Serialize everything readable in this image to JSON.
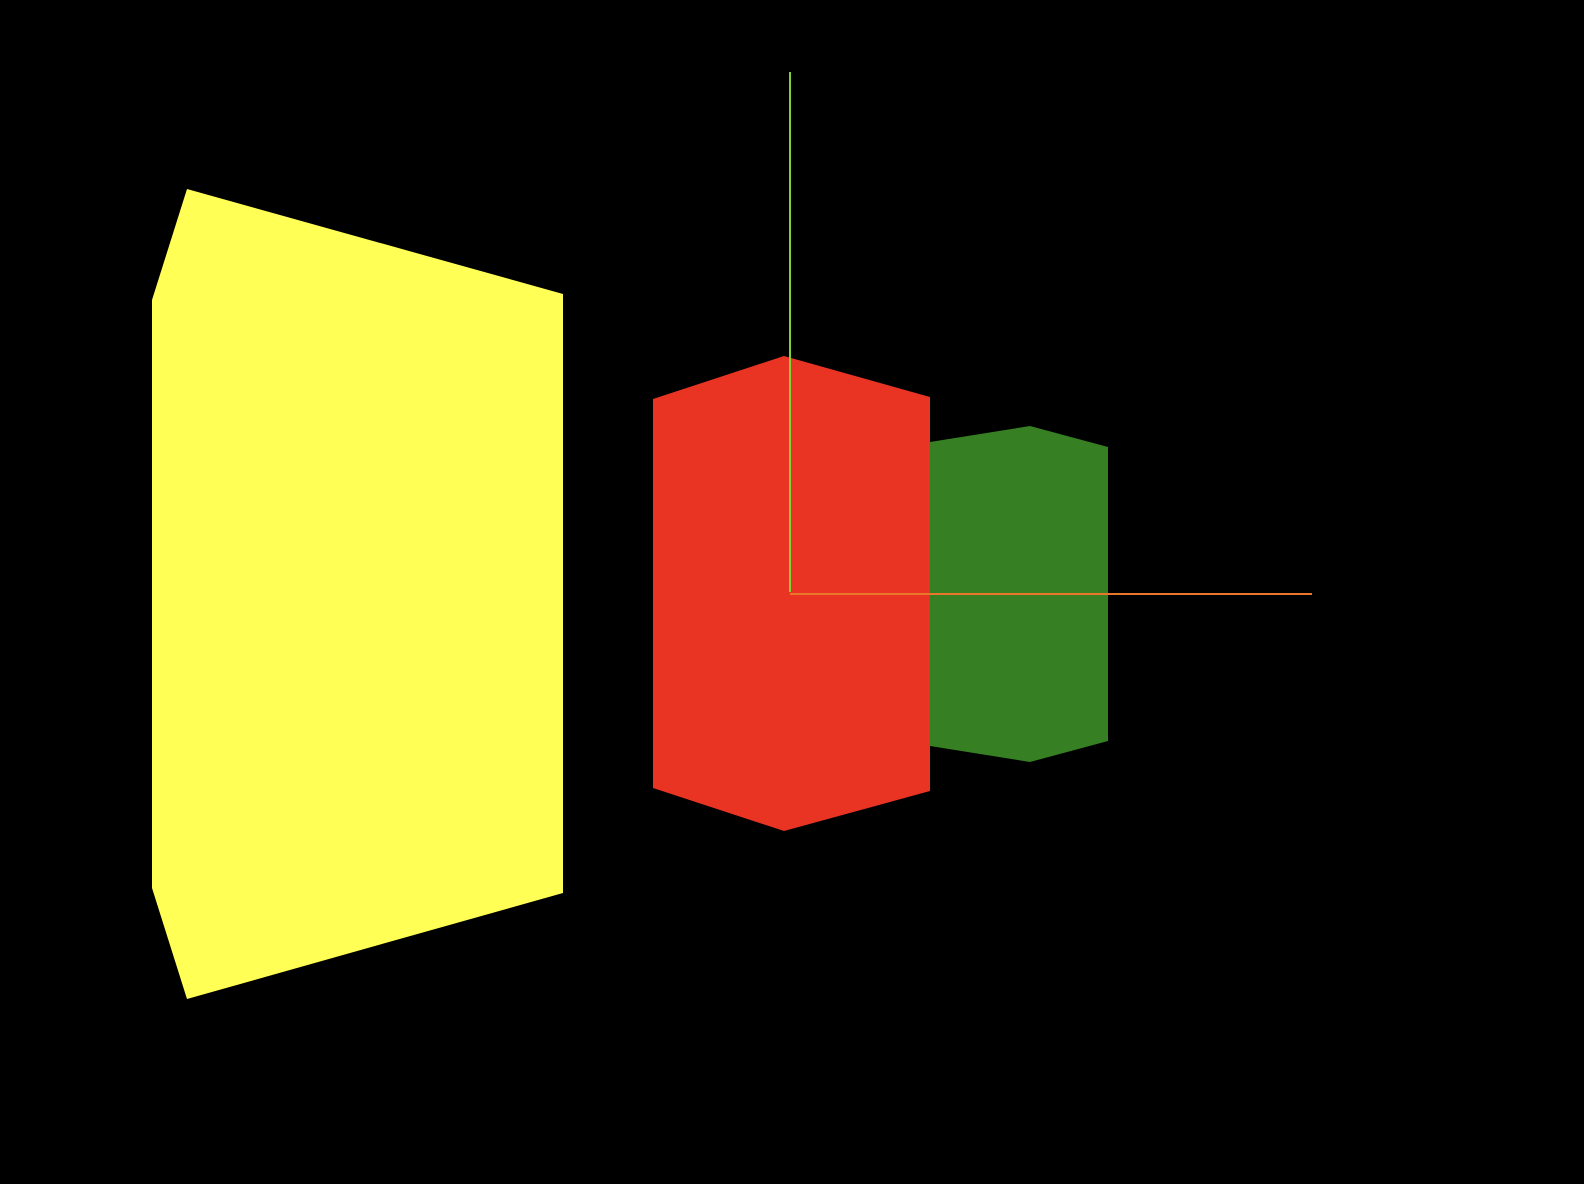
{
  "scene": {
    "background": "#000000",
    "shapes": [
      {
        "id": "yellow-prism",
        "color": "#FFFF55"
      },
      {
        "id": "green-cylinder",
        "color": "#367F22"
      },
      {
        "id": "red-cylinder",
        "color": "#E93424"
      }
    ],
    "axes": [
      {
        "id": "y-axis",
        "color": "#7FD13A"
      },
      {
        "id": "x-axis",
        "color": "#E9762A"
      }
    ]
  }
}
